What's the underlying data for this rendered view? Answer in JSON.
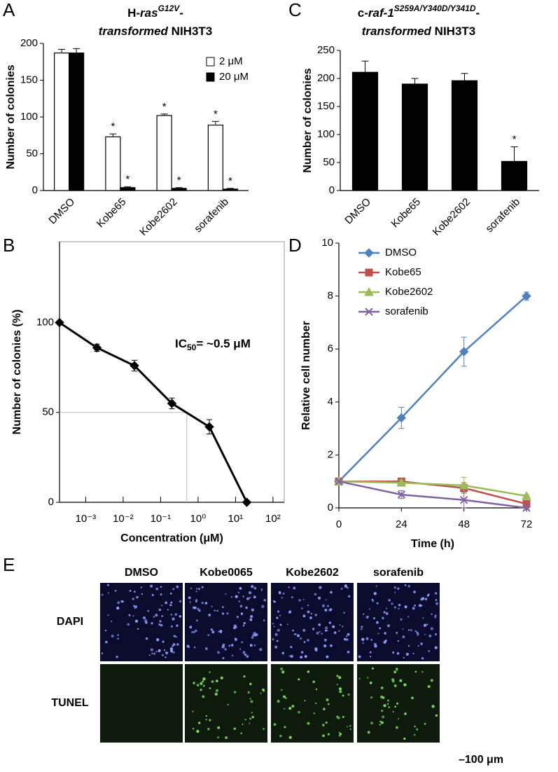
{
  "chart_data": [
    {
      "type": "bar",
      "panel": "A",
      "title": [
        [
          "H-",
          "ras",
          "G12V",
          "-"
        ],
        [
          "transformed",
          " NIH3T3"
        ]
      ],
      "ylabel": "Number of colonies",
      "categories": [
        "DMSO",
        "Kobe65",
        "Kobe2602",
        "sorafenib"
      ],
      "series": [
        {
          "name": "2 μM",
          "color": "#ffffff",
          "values": [
            187,
            73,
            102,
            89
          ],
          "errors": [
            5,
            4,
            2,
            5
          ],
          "markers": [
            null,
            "*",
            "*",
            "*"
          ]
        },
        {
          "name": "20 μM",
          "color": "#000000",
          "values": [
            187,
            4,
            3,
            2
          ],
          "errors": [
            6,
            1,
            1,
            1
          ],
          "markers": [
            null,
            "*",
            "*",
            "*"
          ]
        }
      ],
      "ylim": [
        0,
        200
      ],
      "yticks": [
        0,
        50,
        100,
        150,
        200
      ],
      "legend": "upper right"
    },
    {
      "type": "bar",
      "panel": "C",
      "title": [
        [
          "c-",
          "raf-1",
          "S259A/Y340D/Y341D",
          "-"
        ],
        [
          "transformed",
          " NIH3T3"
        ]
      ],
      "ylabel": "Number of colonies",
      "categories": [
        "DMSO",
        "Kobe65",
        "Kobe2602",
        "sorafenib"
      ],
      "series": [
        {
          "color": "#000000",
          "values": [
            211,
            190,
            196,
            52
          ],
          "errors": [
            20,
            10,
            13,
            26
          ],
          "markers": [
            null,
            null,
            null,
            "*"
          ]
        }
      ],
      "ylim": [
        0,
        250
      ],
      "yticks": [
        0,
        50,
        100,
        150,
        200,
        250
      ]
    },
    {
      "type": "line",
      "panel": "B",
      "xlabel": "Concentration (μM)",
      "ylabel": "Number of colonies (%)",
      "annotation": [
        "IC",
        "50",
        "= ~0.5 μM"
      ],
      "x": [
        0.0002,
        0.002,
        0.02,
        0.2,
        2,
        20
      ],
      "series": [
        {
          "color": "#000000",
          "marker": "diamond",
          "values": [
            100,
            86,
            76,
            55,
            42,
            0
          ],
          "errors": [
            0,
            2,
            3,
            3,
            4,
            0
          ]
        }
      ],
      "xscale": "log",
      "xlim": [
        0.0002,
        200
      ],
      "xticks": [
        {
          "value": 0.001,
          "label": "10⁻³"
        },
        {
          "value": 0.01,
          "label": "10⁻²"
        },
        {
          "value": 0.1,
          "label": "10⁻¹"
        },
        {
          "value": 1,
          "label": "10⁰"
        },
        {
          "value": 10,
          "label": "10¹"
        },
        {
          "value": 100,
          "label": "10²"
        }
      ],
      "ylim": [
        0,
        145
      ],
      "yticks": [
        0,
        50,
        100
      ],
      "guide": {
        "x": 0.5,
        "y": 50
      }
    },
    {
      "type": "line",
      "panel": "D",
      "xlabel": "Time (h)",
      "ylabel": "Relative cell number",
      "x": [
        0,
        24,
        48,
        72
      ],
      "series": [
        {
          "name": "DMSO",
          "color": "#4f81bd",
          "marker": "diamond",
          "values": [
            1,
            3.4,
            5.9,
            8.0
          ],
          "errors": [
            0.05,
            0.4,
            0.55,
            0.15
          ]
        },
        {
          "name": "Kobe65",
          "color": "#c0504d",
          "marker": "square",
          "values": [
            1,
            1.0,
            0.75,
            0.15
          ],
          "errors": [
            0.05,
            0.1,
            0.2,
            0.1
          ]
        },
        {
          "name": "Kobe2602",
          "color": "#9bbb59",
          "marker": "triangle",
          "values": [
            1,
            0.95,
            0.85,
            0.45
          ],
          "errors": [
            0.05,
            0.1,
            0.3,
            0.05
          ]
        },
        {
          "name": "sorafenib",
          "color": "#8064a2",
          "marker": "x",
          "values": [
            1,
            0.5,
            0.3,
            0
          ],
          "errors": [
            0.05,
            0.15,
            0.3,
            0.02
          ]
        }
      ],
      "xlim": [
        0,
        72
      ],
      "xticks": [
        0,
        24,
        48,
        72
      ],
      "ylim": [
        0,
        10
      ],
      "yticks": [
        0,
        2,
        4,
        6,
        8,
        10
      ],
      "legend": "upper left"
    }
  ],
  "image_panel": {
    "panel": "E",
    "columns": [
      "DMSO",
      "Kobe0065",
      "Kobe2602",
      "sorafenib"
    ],
    "rows": [
      "DAPI",
      "TUNEL"
    ],
    "scale_bar": "–100 μm"
  }
}
